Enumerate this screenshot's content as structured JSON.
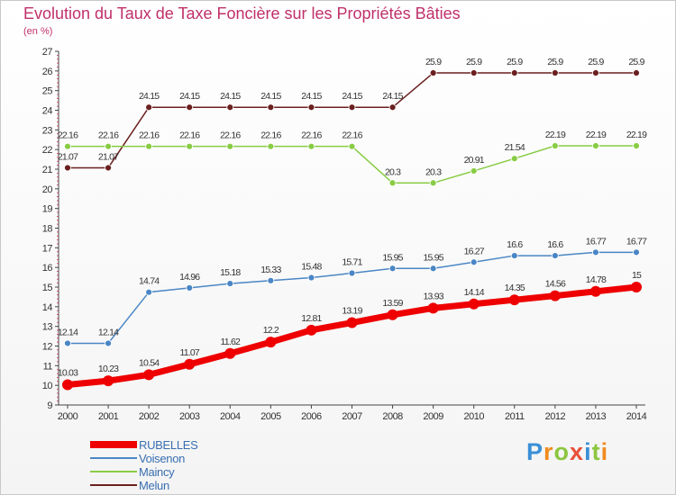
{
  "title": "Evolution du Taux de Taxe Foncière sur les Propriétés Bâties",
  "unit": "(en %)",
  "logo": {
    "letters": [
      "P",
      "r",
      "o",
      "x",
      "i",
      "t",
      "i"
    ],
    "colors": [
      "#3a8fd6",
      "#f08c1e",
      "#8cc63f",
      "#e8503a",
      "#3a8fd6",
      "#8cc63f",
      "#f08c1e"
    ]
  },
  "chart_data": {
    "type": "line",
    "title": "Evolution du Taux de Taxe Foncière sur les Propriétés Bâties",
    "ylabel": "(en %)",
    "xlabel": "",
    "x": [
      "2000",
      "2001",
      "2002",
      "2003",
      "2004",
      "2005",
      "2006",
      "2007",
      "2008",
      "2009",
      "2010",
      "2011",
      "2012",
      "2013",
      "2014"
    ],
    "ylim": [
      9,
      27
    ],
    "yticks": [
      9,
      10,
      11,
      12,
      13,
      14,
      15,
      16,
      17,
      18,
      19,
      20,
      21,
      22,
      23,
      24,
      25,
      26,
      27
    ],
    "series": [
      {
        "name": "RUBELLES",
        "color": "#ee0000",
        "width": 7,
        "marker": 6,
        "values": [
          10.03,
          10.23,
          10.54,
          11.07,
          11.62,
          12.2,
          12.81,
          13.19,
          13.59,
          13.93,
          14.14,
          14.35,
          14.56,
          14.78,
          15
        ],
        "labels": [
          "10.03",
          "10.23",
          "10.54",
          "11.07",
          "11.62",
          "12.2",
          "12.81",
          "13.19",
          "13.59",
          "13.93",
          "14.14",
          "14.35",
          "14.56",
          "14.78",
          "15"
        ]
      },
      {
        "name": "Voisenon",
        "color": "#4a86c5",
        "width": 1.5,
        "marker": 3.5,
        "values": [
          12.14,
          12.14,
          14.74,
          14.96,
          15.18,
          15.33,
          15.48,
          15.71,
          15.95,
          15.95,
          16.27,
          16.6,
          16.6,
          16.77,
          16.77
        ],
        "labels": [
          "12.14",
          "12.14",
          "14.74",
          "14.96",
          "15.18",
          "15.33",
          "15.48",
          "15.71",
          "15.95",
          "15.95",
          "16.27",
          "16.6",
          "16.6",
          "16.77",
          "16.77"
        ]
      },
      {
        "name": "Maincy",
        "color": "#88cc44",
        "width": 1.5,
        "marker": 3.5,
        "values": [
          22.16,
          22.16,
          22.16,
          22.16,
          22.16,
          22.16,
          22.16,
          22.16,
          20.3,
          20.3,
          20.91,
          21.54,
          22.19,
          22.19,
          22.19
        ],
        "labels": [
          "22.16",
          "22.16",
          "22.16",
          "22.16",
          "22.16",
          "22.16",
          "22.16",
          "22.16",
          "20.3",
          "20.3",
          "20.91",
          "21.54",
          "22.19",
          "22.19",
          "22.19"
        ]
      },
      {
        "name": "Melun",
        "color": "#6b1f1f",
        "width": 1.5,
        "marker": 3.5,
        "values": [
          21.07,
          21.07,
          24.15,
          24.15,
          24.15,
          24.15,
          24.15,
          24.15,
          24.15,
          25.9,
          25.9,
          25.9,
          25.9,
          25.9,
          25.9
        ],
        "labels": [
          "21.07",
          "21.07",
          "24.15",
          "24.15",
          "24.15",
          "24.15",
          "24.15",
          "24.15",
          "24.15",
          "25.9",
          "25.9",
          "25.9",
          "25.9",
          "25.9",
          "25.9"
        ]
      }
    ],
    "legend": {
      "position": "bottom-left"
    },
    "grid": false
  }
}
